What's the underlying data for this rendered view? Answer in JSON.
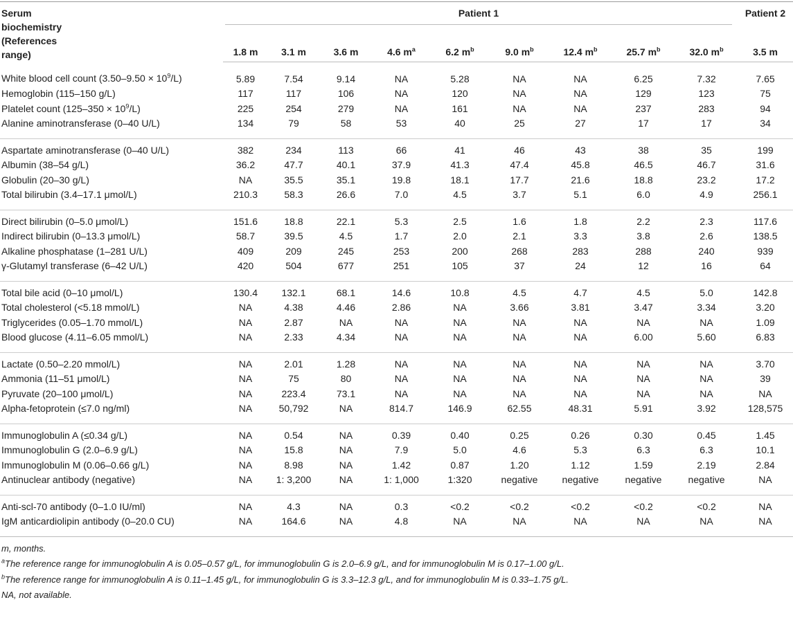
{
  "header": {
    "title": "Serum biochemistry (References range)",
    "patient1": "Patient 1",
    "patient2": "Patient 2",
    "patient2_col": "3.5 m"
  },
  "columns": [
    "1.8 m",
    "3.1 m",
    "3.6 m",
    {
      "text": "4.6 m",
      "sup": "a"
    },
    {
      "text": "6.2 m",
      "sup": "b"
    },
    {
      "text": "9.0 m",
      "sup": "b"
    },
    {
      "text": "12.4 m",
      "sup": "b"
    },
    {
      "text": "25.7 m",
      "sup": "b"
    },
    {
      "text": "32.0 m",
      "sup": "b"
    }
  ],
  "groups": [
    {
      "rows": [
        {
          "label": [
            "White blood cell count (3.50–9.50 × 10",
            "9",
            "/L)"
          ],
          "cells": [
            "5.89",
            "7.54",
            "9.14",
            "NA",
            "5.28",
            "NA",
            "NA",
            "6.25",
            "7.32",
            "7.65"
          ]
        },
        {
          "label": "Hemoglobin (115–150 g/L)",
          "cells": [
            "117",
            "117",
            "106",
            "NA",
            "120",
            "NA",
            "NA",
            "129",
            "123",
            "75"
          ]
        },
        {
          "label": [
            "Platelet count (125–350 × 10",
            "9",
            "/L)"
          ],
          "cells": [
            "225",
            "254",
            "279",
            "NA",
            "161",
            "NA",
            "NA",
            "237",
            "283",
            "94"
          ]
        },
        {
          "label": "Alanine aminotransferase (0–40 U/L)",
          "cells": [
            "134",
            "79",
            "58",
            "53",
            "40",
            "25",
            "27",
            "17",
            "17",
            "34"
          ]
        }
      ]
    },
    {
      "rows": [
        {
          "label": "Aspartate aminotransferase (0–40 U/L)",
          "cells": [
            "382",
            "234",
            "113",
            "66",
            "41",
            "46",
            "43",
            "38",
            "35",
            "199"
          ]
        },
        {
          "label": "Albumin (38–54 g/L)",
          "cells": [
            "36.2",
            "47.7",
            "40.1",
            "37.9",
            "41.3",
            "47.4",
            "45.8",
            "46.5",
            "46.7",
            "31.6"
          ]
        },
        {
          "label": "Globulin (20–30 g/L)",
          "cells": [
            "NA",
            "35.5",
            "35.1",
            "19.8",
            "18.1",
            "17.7",
            "21.6",
            "18.8",
            "23.2",
            "17.2"
          ]
        },
        {
          "label": "Total bilirubin (3.4–17.1 μmol/L)",
          "cells": [
            "210.3",
            "58.3",
            "26.6",
            "7.0",
            "4.5",
            "3.7",
            "5.1",
            "6.0",
            "4.9",
            "256.1"
          ]
        }
      ]
    },
    {
      "rows": [
        {
          "label": "Direct bilirubin (0–5.0 μmol/L)",
          "cells": [
            "151.6",
            "18.8",
            "22.1",
            "5.3",
            "2.5",
            "1.6",
            "1.8",
            "2.2",
            "2.3",
            "117.6"
          ]
        },
        {
          "label": "Indirect bilirubin (0–13.3 μmol/L)",
          "cells": [
            "58.7",
            "39.5",
            "4.5",
            "1.7",
            "2.0",
            "2.1",
            "3.3",
            "3.8",
            "2.6",
            "138.5"
          ]
        },
        {
          "label": "Alkaline phosphatase (1–281 U/L)",
          "cells": [
            "409",
            "209",
            "245",
            "253",
            "200",
            "268",
            "283",
            "288",
            "240",
            "939"
          ]
        },
        {
          "label": "γ-Glutamyl transferase (6–42 U/L)",
          "cells": [
            "420",
            "504",
            "677",
            "251",
            "105",
            "37",
            "24",
            "12",
            "16",
            "64"
          ]
        }
      ]
    },
    {
      "rows": [
        {
          "label": "Total bile acid (0–10 μmol/L)",
          "cells": [
            "130.4",
            "132.1",
            "68.1",
            "14.6",
            "10.8",
            "4.5",
            "4.7",
            "4.5",
            "5.0",
            "142.8"
          ]
        },
        {
          "label": "Total cholesterol (<5.18 mmol/L)",
          "cells": [
            "NA",
            "4.38",
            "4.46",
            "2.86",
            "NA",
            "3.66",
            "3.81",
            "3.47",
            "3.34",
            "3.20"
          ]
        },
        {
          "label": "Triglycerides (0.05–1.70 mmol/L)",
          "cells": [
            "NA",
            "2.87",
            "NA",
            "NA",
            "NA",
            "NA",
            "NA",
            "NA",
            "NA",
            "1.09"
          ]
        },
        {
          "label": "Blood glucose (4.11–6.05 mmol/L)",
          "cells": [
            "NA",
            "2.33",
            "4.34",
            "NA",
            "NA",
            "NA",
            "NA",
            "6.00",
            "5.60",
            "6.83"
          ]
        }
      ]
    },
    {
      "rows": [
        {
          "label": "Lactate (0.50–2.20 mmol/L)",
          "cells": [
            "NA",
            "2.01",
            "1.28",
            "NA",
            "NA",
            "NA",
            "NA",
            "NA",
            "NA",
            "3.70"
          ]
        },
        {
          "label": "Ammonia (11–51 μmol/L)",
          "cells": [
            "NA",
            "75",
            "80",
            "NA",
            "NA",
            "NA",
            "NA",
            "NA",
            "NA",
            "39"
          ]
        },
        {
          "label": "Pyruvate (20–100 μmol/L)",
          "cells": [
            "NA",
            "223.4",
            "73.1",
            "NA",
            "NA",
            "NA",
            "NA",
            "NA",
            "NA",
            "NA"
          ]
        },
        {
          "label": "Alpha-fetoprotein (≤7.0 ng/ml)",
          "cells": [
            "NA",
            "50,792",
            "NA",
            "814.7",
            "146.9",
            "62.55",
            "48.31",
            "5.91",
            "3.92",
            "128,575"
          ]
        }
      ]
    },
    {
      "rows": [
        {
          "label": "Immunoglobulin A (≤0.34 g/L)",
          "cells": [
            "NA",
            "0.54",
            "NA",
            "0.39",
            "0.40",
            "0.25",
            "0.26",
            "0.30",
            "0.45",
            "1.45"
          ]
        },
        {
          "label": "Immunoglobulin G (2.0–6.9 g/L)",
          "cells": [
            "NA",
            "15.8",
            "NA",
            "7.9",
            "5.0",
            "4.6",
            "5.3",
            "6.3",
            "6.3",
            "10.1"
          ]
        },
        {
          "label": "Immunoglobulin M (0.06–0.66 g/L)",
          "cells": [
            "NA",
            "8.98",
            "NA",
            "1.42",
            "0.87",
            "1.20",
            "1.12",
            "1.59",
            "2.19",
            "2.84"
          ]
        },
        {
          "label": "Antinuclear antibody (negative)",
          "cells": [
            "NA",
            "1: 3,200",
            "NA",
            "1: 1,000",
            "1:320",
            "negative",
            "negative",
            "negative",
            "negative",
            "NA"
          ]
        }
      ]
    },
    {
      "rows": [
        {
          "label": "Anti-scl-70 antibody (0–1.0 IU/ml)",
          "cells": [
            "NA",
            "4.3",
            "NA",
            "0.3",
            "<0.2",
            "<0.2",
            "<0.2",
            "<0.2",
            "<0.2",
            "NA"
          ]
        },
        {
          "label": "IgM anticardiolipin antibody (0–20.0 CU)",
          "cells": [
            "NA",
            "164.6",
            "NA",
            "4.8",
            "NA",
            "NA",
            "NA",
            "NA",
            "NA",
            "NA"
          ]
        }
      ]
    }
  ],
  "footnotes": [
    "m, months.",
    {
      "mark": "a",
      "text": "The reference range for immunoglobulin A is 0.05–0.57 g/L, for immunoglobulin G is 2.0–6.9 g/L, and for immunoglobulin M is 0.17–1.00 g/L."
    },
    {
      "mark": "b",
      "text": "The reference range for immunoglobulin A is 0.11–1.45 g/L, for immunoglobulin G is 3.3–12.3 g/L, and for immunoglobulin M is 0.33–1.75 g/L."
    },
    "NA, not available."
  ]
}
